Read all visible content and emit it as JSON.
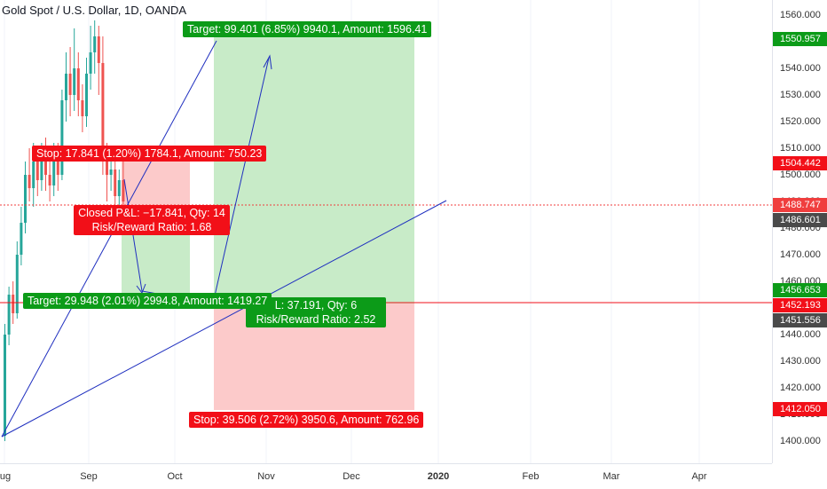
{
  "header": {
    "title": "Gold Spot / U.S. Dollar, 1D, OANDA"
  },
  "price_axis": {
    "ticks": [
      "1560.000",
      "1550.000",
      "1540.000",
      "1530.000",
      "1520.000",
      "1510.000",
      "1500.000",
      "1490.000",
      "1480.000",
      "1470.000",
      "1460.000",
      "1450.000",
      "1440.000",
      "1430.000",
      "1420.000",
      "1410.000",
      "1400.000"
    ],
    "badges": [
      {
        "value": "1550.957",
        "color": "#0c9b18"
      },
      {
        "value": "1504.442",
        "color": "#f20f18"
      },
      {
        "value": "1488.747",
        "color": "#f03e3e"
      },
      {
        "value": "1486.601",
        "color": "#4a4a4a"
      },
      {
        "value": "1456.653",
        "color": "#0c9b18"
      },
      {
        "value": "1452.193",
        "color": "#f20f18"
      },
      {
        "value": "1451.556",
        "color": "#4a4a4a"
      },
      {
        "value": "1412.050",
        "color": "#f20f18"
      }
    ]
  },
  "time_axis": {
    "ticks": [
      {
        "label": "ug",
        "bold": false
      },
      {
        "label": "Sep",
        "bold": false
      },
      {
        "label": "Oct",
        "bold": false
      },
      {
        "label": "Nov",
        "bold": false
      },
      {
        "label": "Dec",
        "bold": false
      },
      {
        "label": "2020",
        "bold": true
      },
      {
        "label": "Feb",
        "bold": false
      },
      {
        "label": "Mar",
        "bold": false
      },
      {
        "label": "Apr",
        "bold": false
      }
    ]
  },
  "position1": {
    "target_label": "Target: 29.948 (2.01%) 2994.8, Amount: 1419.27",
    "stop_label": "Stop: 17.841 (1.20%) 1784.1, Amount: 750.23",
    "closed_line1": "Closed P&L: −17.841, Qty: 14",
    "closed_line2": "Risk/Reward Ratio: 1.68"
  },
  "position2": {
    "target_label": "Target: 99.401 (6.85%) 9940.1, Amount: 1596.41",
    "stop_label": "Stop: 39.506 (2.72%) 3950.6, Amount: 762.96",
    "open_line1": "L: 37.191, Qty: 6",
    "open_line2": "Risk/Reward Ratio: 2.52"
  },
  "colors": {
    "profit_zone": "#c8ebc8",
    "loss_zone": "#fccaca",
    "candle_up": "#26a69a",
    "candle_down": "#ef5350",
    "trend_line": "#1f2fbf"
  }
}
